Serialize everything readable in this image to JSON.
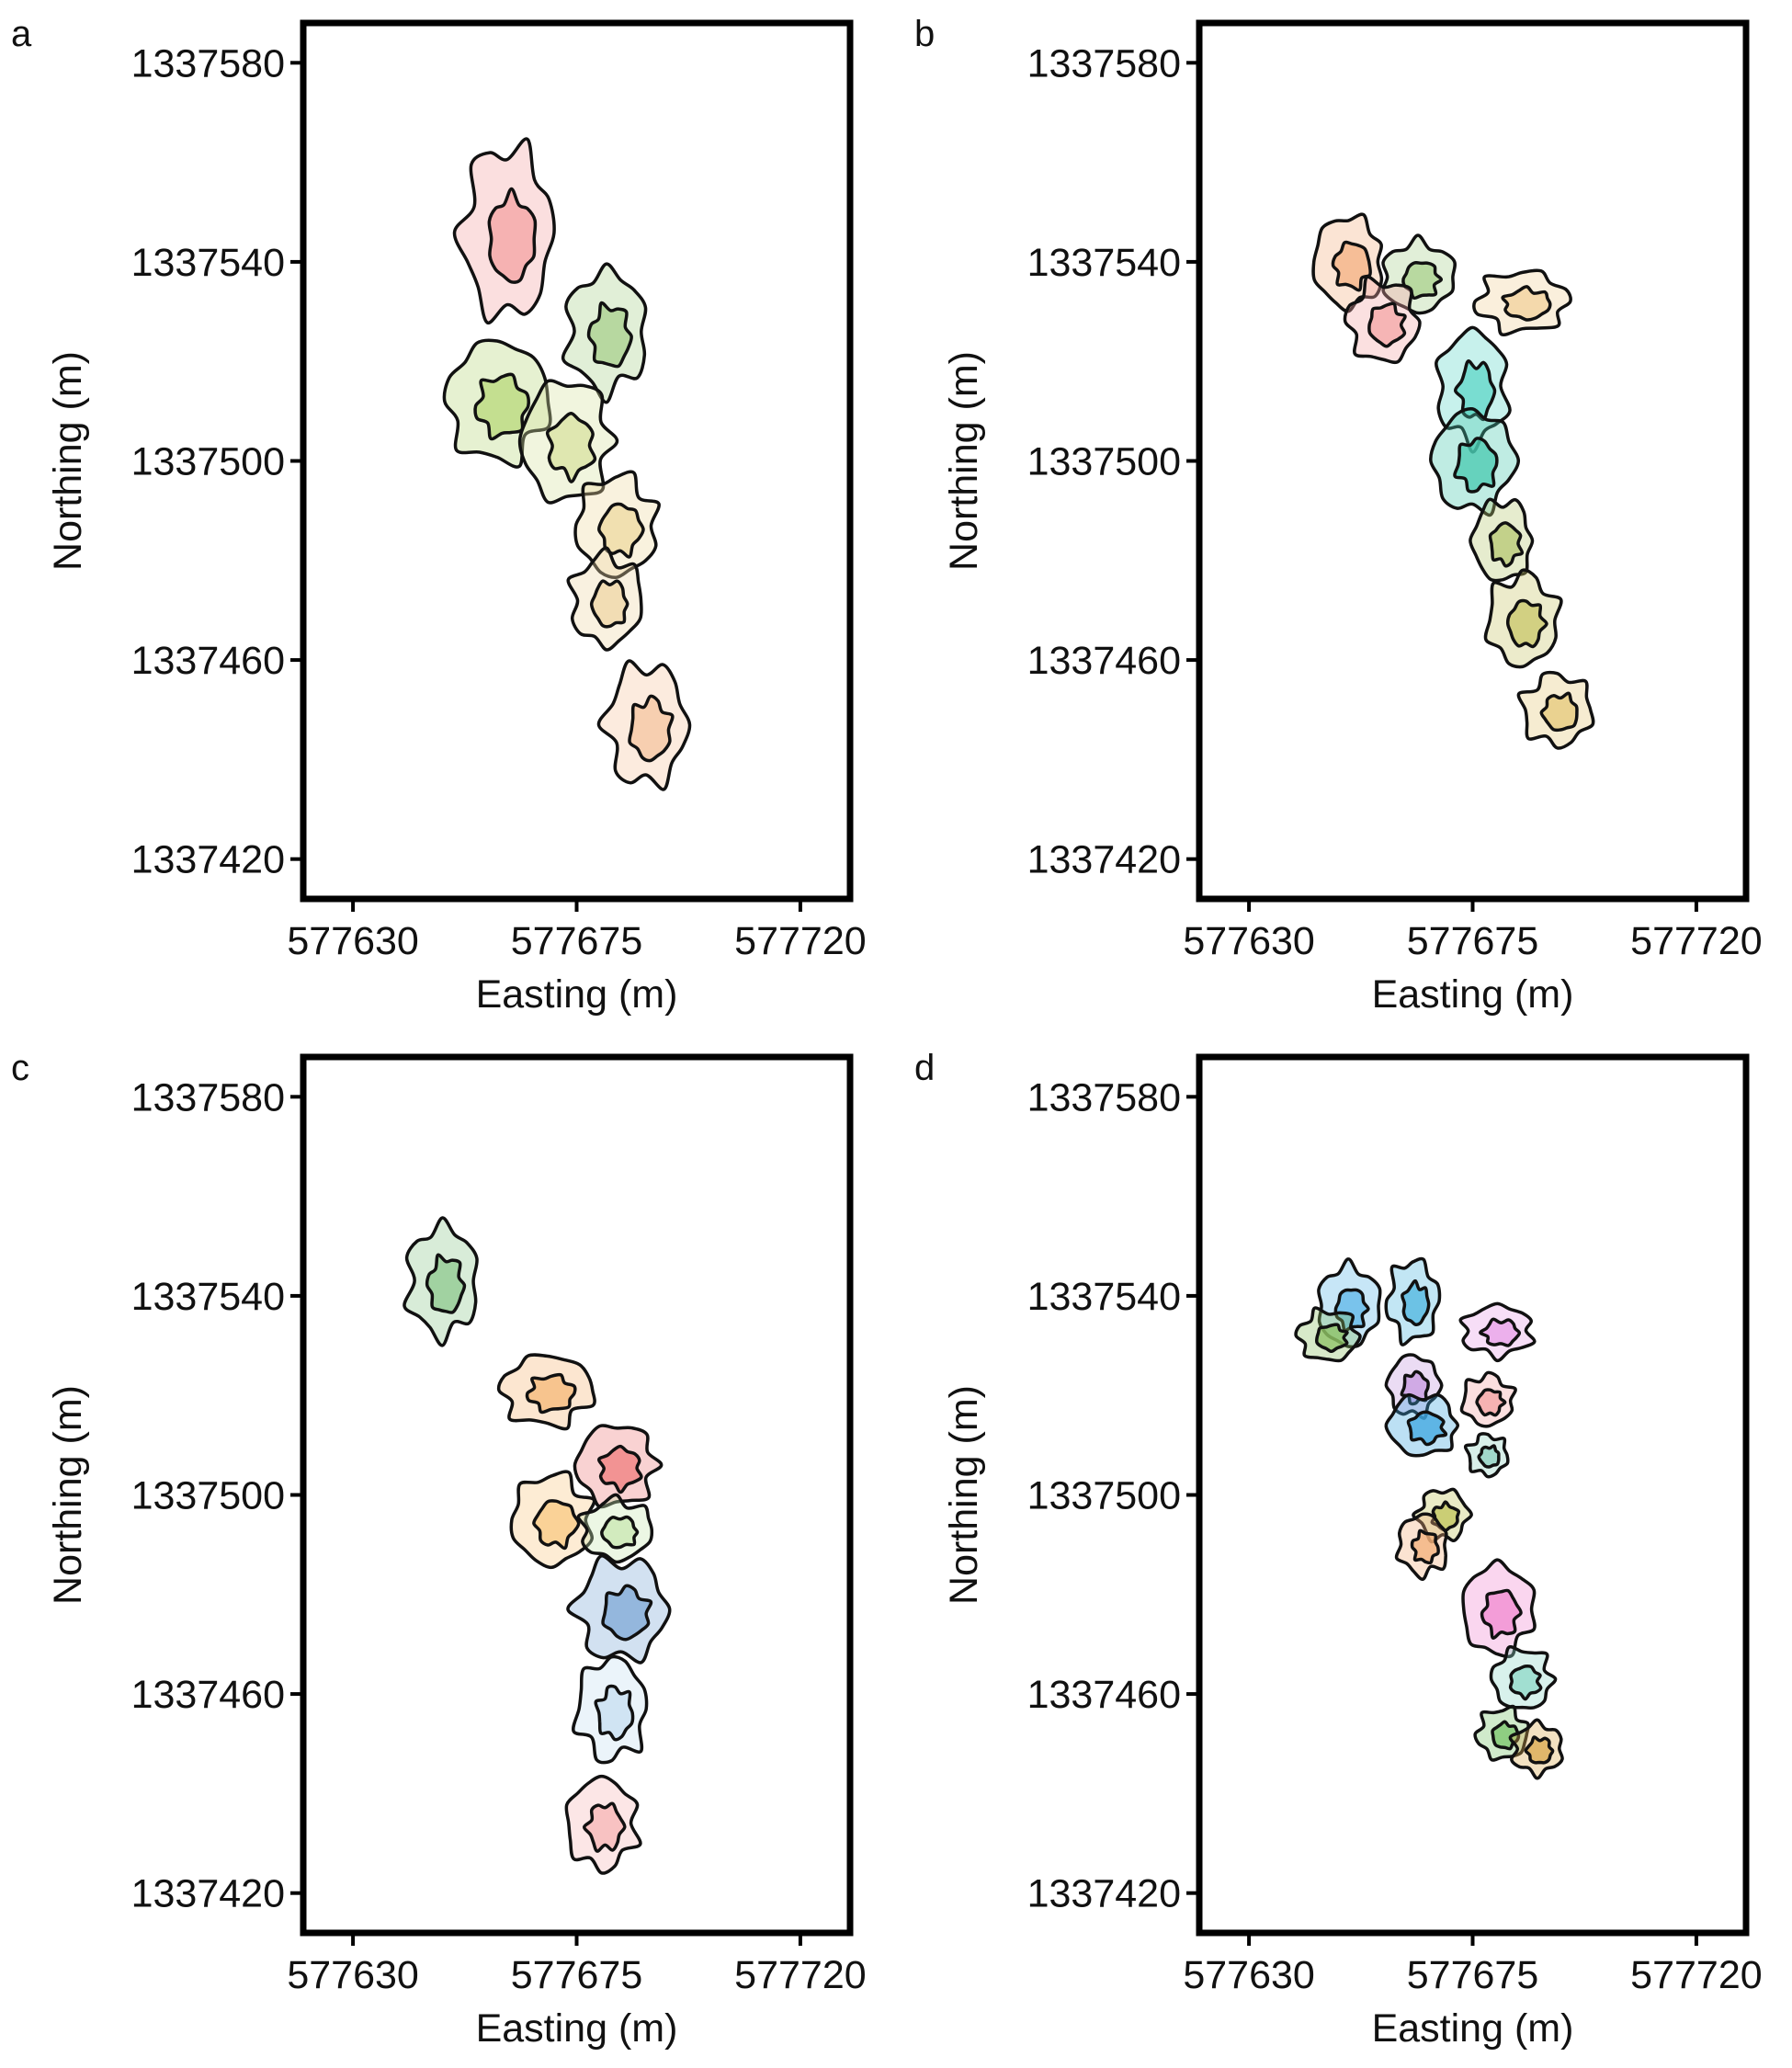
{
  "x_axis": {
    "label": "Easting (m)",
    "ticks": [
      "577630",
      "577675",
      "577720"
    ]
  },
  "y_axis": {
    "label": "Northing (m)",
    "ticks": [
      "1337420",
      "1337460",
      "1337500",
      "1337540",
      "1337580"
    ]
  },
  "chart_data": [
    {
      "panel": "a",
      "type": "area",
      "xlabel": "Easting (m)",
      "ylabel": "Northing (m)",
      "xlim": [
        577620,
        577730
      ],
      "ylim": [
        1337412,
        1337588
      ],
      "xticks": [
        577630,
        577675,
        577720
      ],
      "yticks": [
        1337420,
        1337460,
        1337500,
        1337540,
        1337580
      ],
      "grid": false,
      "series": [
        {
          "color": "#f4a3a3",
          "cx": 577661,
          "cy": 1337546,
          "rx": 9,
          "ry": 17
        },
        {
          "color": "#a8d08d",
          "cx": 577681,
          "cy": 1337526,
          "rx": 8,
          "ry": 12
        },
        {
          "color": "#b8d87a",
          "cx": 577659,
          "cy": 1337512,
          "rx": 10,
          "ry": 12
        },
        {
          "color": "#d8e2a0",
          "cx": 577673,
          "cy": 1337504,
          "rx": 9,
          "ry": 12
        },
        {
          "color": "#eed9a0",
          "cx": 577683,
          "cy": 1337487,
          "rx": 8,
          "ry": 10
        },
        {
          "color": "#efd6a6",
          "cx": 577681,
          "cy": 1337472,
          "rx": 7,
          "ry": 9
        },
        {
          "color": "#f6c6a0",
          "cx": 577689,
          "cy": 1337447,
          "rx": 8,
          "ry": 12
        }
      ]
    },
    {
      "panel": "b",
      "type": "area",
      "xlabel": "Easting (m)",
      "ylabel": "Northing (m)",
      "xlim": [
        577620,
        577730
      ],
      "ylim": [
        1337412,
        1337588
      ],
      "xticks": [
        577630,
        577675,
        577720
      ],
      "yticks": [
        1337420,
        1337460,
        1337500,
        1337540,
        1337580
      ],
      "grid": false,
      "series": [
        {
          "color": "#f4b183",
          "cx": 577650,
          "cy": 1337540,
          "rx": 7,
          "ry": 9
        },
        {
          "color": "#a9d18e",
          "cx": 577664,
          "cy": 1337537,
          "rx": 7,
          "ry": 7
        },
        {
          "color": "#f4a7a7",
          "cx": 577657,
          "cy": 1337528,
          "rx": 7,
          "ry": 8
        },
        {
          "color": "#f2d29c",
          "cx": 577685,
          "cy": 1337532,
          "rx": 9,
          "ry": 6
        },
        {
          "color": "#5fd6c8",
          "cx": 577675,
          "cy": 1337515,
          "rx": 7,
          "ry": 11
        },
        {
          "color": "#48c9b0",
          "cx": 577675,
          "cy": 1337500,
          "rx": 8,
          "ry": 10
        },
        {
          "color": "#b7c873",
          "cx": 577681,
          "cy": 1337484,
          "rx": 6,
          "ry": 8
        },
        {
          "color": "#c9c76a",
          "cx": 577685,
          "cy": 1337468,
          "rx": 7,
          "ry": 9
        },
        {
          "color": "#e5c97a",
          "cx": 577692,
          "cy": 1337450,
          "rx": 7,
          "ry": 7
        }
      ]
    },
    {
      "panel": "c",
      "type": "area",
      "xlabel": "Easting (m)",
      "ylabel": "Northing (m)",
      "xlim": [
        577620,
        577730
      ],
      "ylim": [
        1337412,
        1337588
      ],
      "xticks": [
        577630,
        577675,
        577720
      ],
      "yticks": [
        1337420,
        1337460,
        1337500,
        1337540,
        1337580
      ],
      "grid": false,
      "series": [
        {
          "color": "#8fc98f",
          "cx": 577648,
          "cy": 1337543,
          "rx": 7,
          "ry": 11
        },
        {
          "color": "#f5b878",
          "cx": 577669,
          "cy": 1337521,
          "rx": 9,
          "ry": 7
        },
        {
          "color": "#ef7d7d",
          "cx": 577683,
          "cy": 1337506,
          "rx": 8,
          "ry": 8
        },
        {
          "color": "#f8c983",
          "cx": 577670,
          "cy": 1337495,
          "rx": 8,
          "ry": 9
        },
        {
          "color": "#c9e7b2",
          "cx": 577683,
          "cy": 1337493,
          "rx": 7,
          "ry": 6
        },
        {
          "color": "#7fa8d6",
          "cx": 577684,
          "cy": 1337477,
          "rx": 9,
          "ry": 10
        },
        {
          "color": "#c7dff0",
          "cx": 577682,
          "cy": 1337457,
          "rx": 7,
          "ry": 10
        },
        {
          "color": "#f7b6b6",
          "cx": 577680,
          "cy": 1337434,
          "rx": 7,
          "ry": 9
        }
      ]
    },
    {
      "panel": "d",
      "type": "area",
      "xlabel": "Easting (m)",
      "ylabel": "Northing (m)",
      "xlim": [
        577620,
        577730
      ],
      "ylim": [
        1337412,
        1337588
      ],
      "xticks": [
        577630,
        577675,
        577720
      ],
      "yticks": [
        1337420,
        1337460,
        1337500,
        1337540,
        1337580
      ],
      "grid": false,
      "series": [
        {
          "color": "#5fb7e8",
          "cx": 577650,
          "cy": 1337538,
          "rx": 6,
          "ry": 8
        },
        {
          "color": "#8cc063",
          "cx": 577646,
          "cy": 1337532,
          "rx": 6,
          "ry": 5
        },
        {
          "color": "#4fb6e0",
          "cx": 577663,
          "cy": 1337539,
          "rx": 5,
          "ry": 8
        },
        {
          "color": "#e8a0e8",
          "cx": 577680,
          "cy": 1337533,
          "rx": 7,
          "ry": 5
        },
        {
          "color": "#c79ae0",
          "cx": 577663,
          "cy": 1337522,
          "rx": 5,
          "ry": 6
        },
        {
          "color": "#3fa7e0",
          "cx": 577665,
          "cy": 1337514,
          "rx": 7,
          "ry": 6
        },
        {
          "color": "#f4a3a3",
          "cx": 577678,
          "cy": 1337519,
          "rx": 5,
          "ry": 5
        },
        {
          "color": "#8fd0c0",
          "cx": 577678,
          "cy": 1337508,
          "rx": 4,
          "ry": 4
        },
        {
          "color": "#c0c45a",
          "cx": 577669,
          "cy": 1337496,
          "rx": 5,
          "ry": 5
        },
        {
          "color": "#f3b07a",
          "cx": 577665,
          "cy": 1337490,
          "rx": 5,
          "ry": 6
        },
        {
          "color": "#f08ad0",
          "cx": 577680,
          "cy": 1337477,
          "rx": 7,
          "ry": 9
        },
        {
          "color": "#8fd8c8",
          "cx": 577685,
          "cy": 1337463,
          "rx": 6,
          "ry": 6
        },
        {
          "color": "#79c46a",
          "cx": 577681,
          "cy": 1337452,
          "rx": 5,
          "ry": 5
        },
        {
          "color": "#d9a84e",
          "cx": 577688,
          "cy": 1337449,
          "rx": 5,
          "ry": 5
        }
      ]
    }
  ]
}
